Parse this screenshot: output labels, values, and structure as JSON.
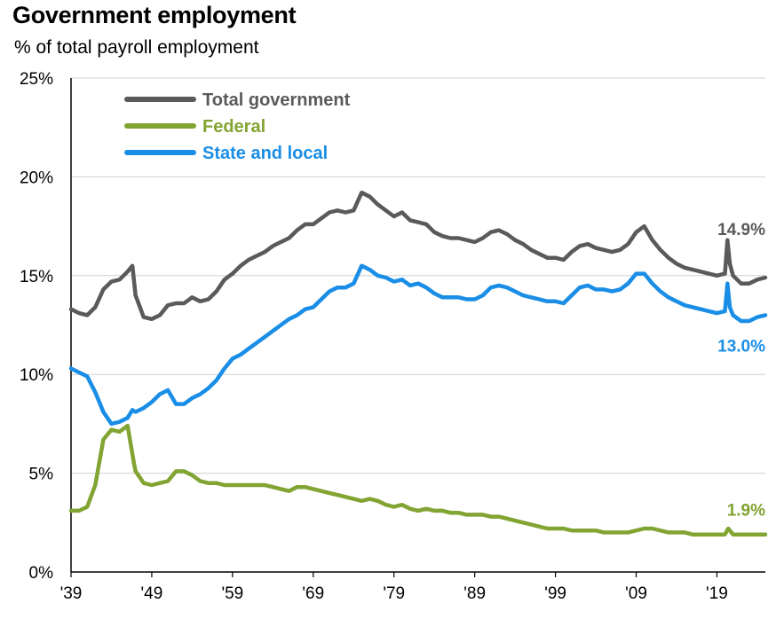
{
  "title": "Government employment",
  "subtitle": "% of total payroll employment",
  "chart_data": {
    "type": "line",
    "ylim": [
      0,
      25
    ],
    "xlim": [
      1939,
      2025
    ],
    "y_ticks": [
      0,
      5,
      10,
      15,
      20,
      25
    ],
    "y_tick_labels": [
      "0%",
      "5%",
      "10%",
      "15%",
      "20%",
      "25%"
    ],
    "x_ticks": [
      1939,
      1949,
      1959,
      1969,
      1979,
      1989,
      1999,
      2009,
      2019
    ],
    "x_tick_labels": [
      "'39",
      "'49",
      "'59",
      "'69",
      "'79",
      "'89",
      "'99",
      "'09",
      "'19"
    ],
    "grid": "horizontal",
    "legend_position": "top-left",
    "series": [
      {
        "name": "Total government",
        "color": "#5a5a5a",
        "end_label": "14.9%",
        "points": [
          [
            1939,
            13.3
          ],
          [
            1940,
            13.1
          ],
          [
            1941,
            13.0
          ],
          [
            1942,
            13.4
          ],
          [
            1943,
            14.3
          ],
          [
            1944,
            14.7
          ],
          [
            1945,
            14.8
          ],
          [
            1946,
            15.2
          ],
          [
            1946.6,
            15.5
          ],
          [
            1947,
            14.0
          ],
          [
            1948,
            12.9
          ],
          [
            1949,
            12.8
          ],
          [
            1950,
            13.0
          ],
          [
            1951,
            13.5
          ],
          [
            1952,
            13.6
          ],
          [
            1953,
            13.6
          ],
          [
            1954,
            13.9
          ],
          [
            1955,
            13.7
          ],
          [
            1956,
            13.8
          ],
          [
            1957,
            14.2
          ],
          [
            1958,
            14.8
          ],
          [
            1959,
            15.1
          ],
          [
            1960,
            15.5
          ],
          [
            1961,
            15.8
          ],
          [
            1962,
            16.0
          ],
          [
            1963,
            16.2
          ],
          [
            1964,
            16.5
          ],
          [
            1965,
            16.7
          ],
          [
            1966,
            16.9
          ],
          [
            1967,
            17.3
          ],
          [
            1968,
            17.6
          ],
          [
            1969,
            17.6
          ],
          [
            1970,
            17.9
          ],
          [
            1971,
            18.2
          ],
          [
            1972,
            18.3
          ],
          [
            1973,
            18.2
          ],
          [
            1974,
            18.3
          ],
          [
            1975,
            19.2
          ],
          [
            1976,
            19.0
          ],
          [
            1977,
            18.6
          ],
          [
            1978,
            18.3
          ],
          [
            1979,
            18.0
          ],
          [
            1980,
            18.2
          ],
          [
            1981,
            17.8
          ],
          [
            1982,
            17.7
          ],
          [
            1983,
            17.6
          ],
          [
            1984,
            17.2
          ],
          [
            1985,
            17.0
          ],
          [
            1986,
            16.9
          ],
          [
            1987,
            16.9
          ],
          [
            1988,
            16.8
          ],
          [
            1989,
            16.7
          ],
          [
            1990,
            16.9
          ],
          [
            1991,
            17.2
          ],
          [
            1992,
            17.3
          ],
          [
            1993,
            17.1
          ],
          [
            1994,
            16.8
          ],
          [
            1995,
            16.6
          ],
          [
            1996,
            16.3
          ],
          [
            1997,
            16.1
          ],
          [
            1998,
            15.9
          ],
          [
            1999,
            15.9
          ],
          [
            2000,
            15.8
          ],
          [
            2001,
            16.2
          ],
          [
            2002,
            16.5
          ],
          [
            2003,
            16.6
          ],
          [
            2004,
            16.4
          ],
          [
            2005,
            16.3
          ],
          [
            2006,
            16.2
          ],
          [
            2007,
            16.3
          ],
          [
            2008,
            16.6
          ],
          [
            2009,
            17.2
          ],
          [
            2010,
            17.5
          ],
          [
            2011,
            16.8
          ],
          [
            2012,
            16.3
          ],
          [
            2013,
            15.9
          ],
          [
            2014,
            15.6
          ],
          [
            2015,
            15.4
          ],
          [
            2016,
            15.3
          ],
          [
            2017,
            15.2
          ],
          [
            2018,
            15.1
          ],
          [
            2019,
            15.0
          ],
          [
            2020,
            15.1
          ],
          [
            2020.3,
            16.8
          ],
          [
            2020.6,
            15.6
          ],
          [
            2021,
            15.0
          ],
          [
            2022,
            14.6
          ],
          [
            2023,
            14.6
          ],
          [
            2024,
            14.8
          ],
          [
            2025,
            14.9
          ]
        ]
      },
      {
        "name": "Federal",
        "color": "#82a432",
        "end_label": "1.9%",
        "points": [
          [
            1939,
            3.1
          ],
          [
            1940,
            3.1
          ],
          [
            1941,
            3.3
          ],
          [
            1942,
            4.4
          ],
          [
            1943,
            6.7
          ],
          [
            1944,
            7.2
          ],
          [
            1945,
            7.1
          ],
          [
            1946,
            7.4
          ],
          [
            1946.8,
            5.5
          ],
          [
            1947,
            5.1
          ],
          [
            1948,
            4.5
          ],
          [
            1949,
            4.4
          ],
          [
            1950,
            4.5
          ],
          [
            1951,
            4.6
          ],
          [
            1952,
            5.1
          ],
          [
            1953,
            5.1
          ],
          [
            1954,
            4.9
          ],
          [
            1955,
            4.6
          ],
          [
            1956,
            4.5
          ],
          [
            1957,
            4.5
          ],
          [
            1958,
            4.4
          ],
          [
            1959,
            4.4
          ],
          [
            1960,
            4.4
          ],
          [
            1961,
            4.4
          ],
          [
            1962,
            4.4
          ],
          [
            1963,
            4.4
          ],
          [
            1964,
            4.3
          ],
          [
            1965,
            4.2
          ],
          [
            1966,
            4.1
          ],
          [
            1967,
            4.3
          ],
          [
            1968,
            4.3
          ],
          [
            1969,
            4.2
          ],
          [
            1970,
            4.1
          ],
          [
            1971,
            4.0
          ],
          [
            1972,
            3.9
          ],
          [
            1973,
            3.8
          ],
          [
            1974,
            3.7
          ],
          [
            1975,
            3.6
          ],
          [
            1976,
            3.7
          ],
          [
            1977,
            3.6
          ],
          [
            1978,
            3.4
          ],
          [
            1979,
            3.3
          ],
          [
            1980,
            3.4
          ],
          [
            1981,
            3.2
          ],
          [
            1982,
            3.1
          ],
          [
            1983,
            3.2
          ],
          [
            1984,
            3.1
          ],
          [
            1985,
            3.1
          ],
          [
            1986,
            3.0
          ],
          [
            1987,
            3.0
          ],
          [
            1988,
            2.9
          ],
          [
            1989,
            2.9
          ],
          [
            1990,
            2.9
          ],
          [
            1991,
            2.8
          ],
          [
            1992,
            2.8
          ],
          [
            1993,
            2.7
          ],
          [
            1994,
            2.6
          ],
          [
            1995,
            2.5
          ],
          [
            1996,
            2.4
          ],
          [
            1997,
            2.3
          ],
          [
            1998,
            2.2
          ],
          [
            1999,
            2.2
          ],
          [
            2000,
            2.2
          ],
          [
            2001,
            2.1
          ],
          [
            2002,
            2.1
          ],
          [
            2003,
            2.1
          ],
          [
            2004,
            2.1
          ],
          [
            2005,
            2.0
          ],
          [
            2006,
            2.0
          ],
          [
            2007,
            2.0
          ],
          [
            2008,
            2.0
          ],
          [
            2009,
            2.1
          ],
          [
            2010,
            2.2
          ],
          [
            2011,
            2.2
          ],
          [
            2012,
            2.1
          ],
          [
            2013,
            2.0
          ],
          [
            2014,
            2.0
          ],
          [
            2015,
            2.0
          ],
          [
            2016,
            1.9
          ],
          [
            2017,
            1.9
          ],
          [
            2018,
            1.9
          ],
          [
            2019,
            1.9
          ],
          [
            2020,
            1.9
          ],
          [
            2020.4,
            2.2
          ],
          [
            2020.8,
            2.0
          ],
          [
            2021,
            1.9
          ],
          [
            2022,
            1.9
          ],
          [
            2023,
            1.9
          ],
          [
            2024,
            1.9
          ],
          [
            2025,
            1.9
          ]
        ]
      },
      {
        "name": "State and local",
        "color": "#1a8ee6",
        "end_label": "13.0%",
        "points": [
          [
            1939,
            10.3
          ],
          [
            1940,
            10.1
          ],
          [
            1941,
            9.9
          ],
          [
            1942,
            9.1
          ],
          [
            1943,
            8.1
          ],
          [
            1944,
            7.5
          ],
          [
            1945,
            7.6
          ],
          [
            1946,
            7.8
          ],
          [
            1946.6,
            8.2
          ],
          [
            1947,
            8.1
          ],
          [
            1948,
            8.3
          ],
          [
            1949,
            8.6
          ],
          [
            1950,
            9.0
          ],
          [
            1951,
            9.2
          ],
          [
            1952,
            8.5
          ],
          [
            1953,
            8.5
          ],
          [
            1954,
            8.8
          ],
          [
            1955,
            9.0
          ],
          [
            1956,
            9.3
          ],
          [
            1957,
            9.7
          ],
          [
            1958,
            10.3
          ],
          [
            1959,
            10.8
          ],
          [
            1960,
            11.0
          ],
          [
            1961,
            11.3
          ],
          [
            1962,
            11.6
          ],
          [
            1963,
            11.9
          ],
          [
            1964,
            12.2
          ],
          [
            1965,
            12.5
          ],
          [
            1966,
            12.8
          ],
          [
            1967,
            13.0
          ],
          [
            1968,
            13.3
          ],
          [
            1969,
            13.4
          ],
          [
            1970,
            13.8
          ],
          [
            1971,
            14.2
          ],
          [
            1972,
            14.4
          ],
          [
            1973,
            14.4
          ],
          [
            1974,
            14.6
          ],
          [
            1975,
            15.5
          ],
          [
            1976,
            15.3
          ],
          [
            1977,
            15.0
          ],
          [
            1978,
            14.9
          ],
          [
            1979,
            14.7
          ],
          [
            1980,
            14.8
          ],
          [
            1981,
            14.5
          ],
          [
            1982,
            14.6
          ],
          [
            1983,
            14.4
          ],
          [
            1984,
            14.1
          ],
          [
            1985,
            13.9
          ],
          [
            1986,
            13.9
          ],
          [
            1987,
            13.9
          ],
          [
            1988,
            13.8
          ],
          [
            1989,
            13.8
          ],
          [
            1990,
            14.0
          ],
          [
            1991,
            14.4
          ],
          [
            1992,
            14.5
          ],
          [
            1993,
            14.4
          ],
          [
            1994,
            14.2
          ],
          [
            1995,
            14.0
          ],
          [
            1996,
            13.9
          ],
          [
            1997,
            13.8
          ],
          [
            1998,
            13.7
          ],
          [
            1999,
            13.7
          ],
          [
            2000,
            13.6
          ],
          [
            2001,
            14.0
          ],
          [
            2002,
            14.4
          ],
          [
            2003,
            14.5
          ],
          [
            2004,
            14.3
          ],
          [
            2005,
            14.3
          ],
          [
            2006,
            14.2
          ],
          [
            2007,
            14.3
          ],
          [
            2008,
            14.6
          ],
          [
            2009,
            15.1
          ],
          [
            2010,
            15.1
          ],
          [
            2011,
            14.6
          ],
          [
            2012,
            14.2
          ],
          [
            2013,
            13.9
          ],
          [
            2014,
            13.7
          ],
          [
            2015,
            13.5
          ],
          [
            2016,
            13.4
          ],
          [
            2017,
            13.3
          ],
          [
            2018,
            13.2
          ],
          [
            2019,
            13.1
          ],
          [
            2020,
            13.2
          ],
          [
            2020.3,
            14.6
          ],
          [
            2020.6,
            13.4
          ],
          [
            2021,
            13.0
          ],
          [
            2022,
            12.7
          ],
          [
            2023,
            12.7
          ],
          [
            2024,
            12.9
          ],
          [
            2025,
            13.0
          ]
        ]
      }
    ]
  }
}
